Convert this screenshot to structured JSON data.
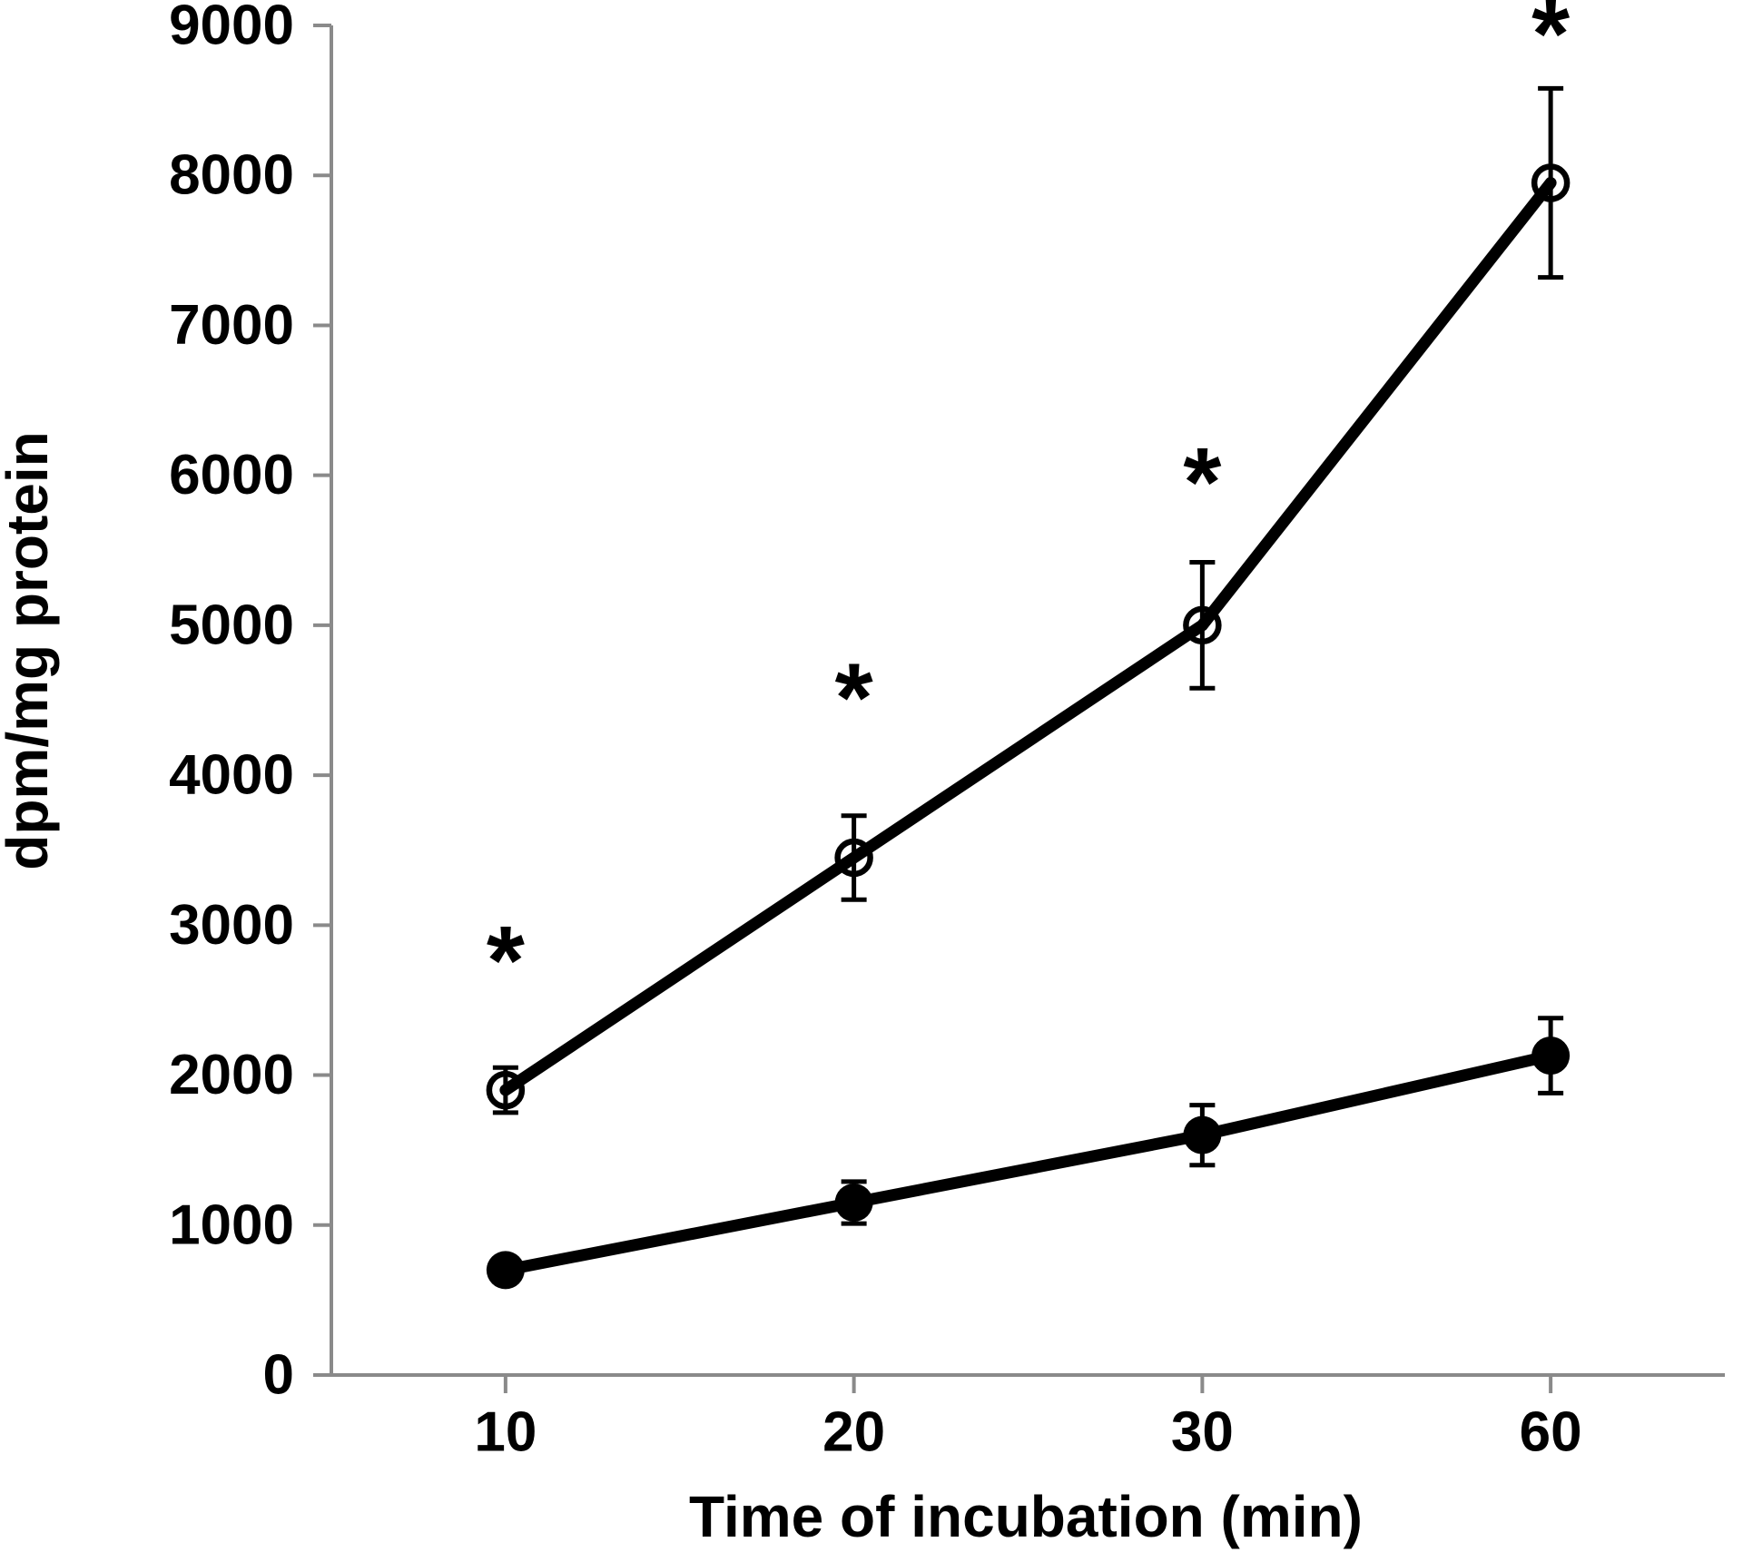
{
  "chart_data": {
    "type": "line",
    "title": "",
    "xlabel": "Time of incubation (min)",
    "ylabel": "dpm/mg protein",
    "categories": [
      "10",
      "20",
      "30",
      "60"
    ],
    "ylim": [
      0,
      9000
    ],
    "ytick_step": 1000,
    "yticks": [
      0,
      1000,
      2000,
      3000,
      4000,
      5000,
      6000,
      7000,
      8000,
      9000
    ],
    "grid": false,
    "legend": "none",
    "series": [
      {
        "name": "open-circle-series",
        "marker": "open-circle",
        "values": [
          1900,
          3450,
          5000,
          7950
        ],
        "errors": [
          150,
          280,
          420,
          630
        ]
      },
      {
        "name": "filled-circle-series",
        "marker": "filled-circle",
        "values": [
          700,
          1150,
          1600,
          2130
        ],
        "errors": [
          0,
          140,
          200,
          250
        ]
      }
    ],
    "annotations": [
      {
        "text": "*",
        "category_index": 0,
        "value": 2770
      },
      {
        "text": "*",
        "category_index": 1,
        "value": 4520
      },
      {
        "text": "*",
        "category_index": 2,
        "value": 5960
      },
      {
        "text": "*",
        "category_index": 3,
        "value": 8950
      }
    ],
    "colors": {
      "series": "#000000",
      "axis": "#8a8a8a",
      "text": "#000000",
      "background": "#ffffff"
    }
  }
}
